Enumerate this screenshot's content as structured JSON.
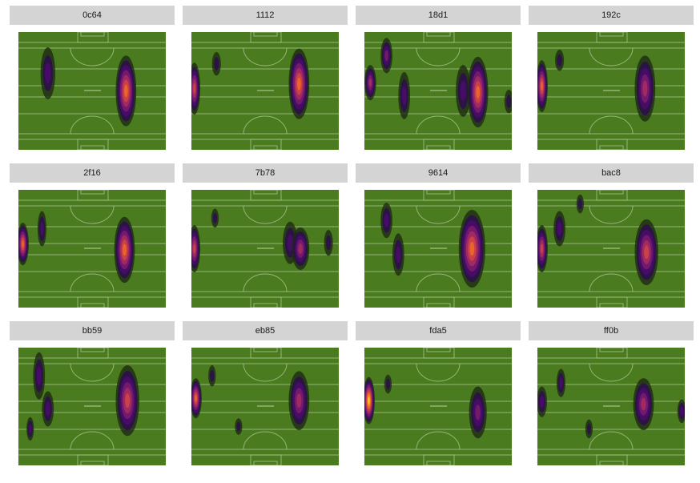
{
  "chart_data": {
    "type": "heatmap",
    "subtype": "faceted 2D density on pitch",
    "x_range": [
      0,
      100
    ],
    "y_range": [
      0,
      100
    ],
    "colors": {
      "pitch": "#4a7b1f",
      "lines": "#a9c48f",
      "strip": "#d4d4d4",
      "levels": [
        "#1d2a14",
        "#2c0f4a",
        "#4a0c6b",
        "#781c6d",
        "#a52c60",
        "#cf4446",
        "#ed6925",
        "#fb9b06",
        "#f7d13d"
      ]
    },
    "panels": [
      {
        "label": "0c64",
        "blobs": [
          {
            "x": 20,
            "y": 35,
            "rx": 5,
            "ry": 22,
            "peak": 0.3
          },
          {
            "x": 73,
            "y": 50,
            "rx": 7,
            "ry": 30,
            "peak": 0.8
          }
        ]
      },
      {
        "label": "1112",
        "blobs": [
          {
            "x": 2,
            "y": 48,
            "rx": 4,
            "ry": 22,
            "peak": 0.6
          },
          {
            "x": 17,
            "y": 27,
            "rx": 3,
            "ry": 10,
            "peak": 0.1
          },
          {
            "x": 73,
            "y": 44,
            "rx": 7,
            "ry": 30,
            "peak": 0.8
          }
        ]
      },
      {
        "label": "18d1",
        "blobs": [
          {
            "x": 4,
            "y": 43,
            "rx": 4,
            "ry": 15,
            "peak": 0.5
          },
          {
            "x": 15,
            "y": 20,
            "rx": 4,
            "ry": 15,
            "peak": 0.4
          },
          {
            "x": 27,
            "y": 54,
            "rx": 4,
            "ry": 20,
            "peak": 0.3
          },
          {
            "x": 67,
            "y": 50,
            "rx": 5,
            "ry": 22,
            "peak": 0.3
          },
          {
            "x": 77,
            "y": 51,
            "rx": 7,
            "ry": 30,
            "peak": 0.7
          },
          {
            "x": 98,
            "y": 59,
            "rx": 3,
            "ry": 10,
            "peak": 0.1
          }
        ]
      },
      {
        "label": "192c",
        "blobs": [
          {
            "x": 3,
            "y": 46,
            "rx": 4,
            "ry": 22,
            "peak": 0.7
          },
          {
            "x": 15,
            "y": 24,
            "rx": 3,
            "ry": 9,
            "peak": 0.1
          },
          {
            "x": 73,
            "y": 48,
            "rx": 7,
            "ry": 28,
            "peak": 0.5
          }
        ]
      },
      {
        "label": "2f16",
        "blobs": [
          {
            "x": 3,
            "y": 46,
            "rx": 4,
            "ry": 18,
            "peak": 0.75
          },
          {
            "x": 16,
            "y": 33,
            "rx": 3,
            "ry": 15,
            "peak": 0.2
          },
          {
            "x": 72,
            "y": 51,
            "rx": 7,
            "ry": 28,
            "peak": 0.8
          }
        ]
      },
      {
        "label": "7b78",
        "blobs": [
          {
            "x": 2,
            "y": 50,
            "rx": 4,
            "ry": 20,
            "peak": 0.6
          },
          {
            "x": 16,
            "y": 24,
            "rx": 2.5,
            "ry": 8,
            "peak": 0.1
          },
          {
            "x": 67,
            "y": 45,
            "rx": 5,
            "ry": 18,
            "peak": 0.2
          },
          {
            "x": 74,
            "y": 50,
            "rx": 6,
            "ry": 18,
            "peak": 0.5
          },
          {
            "x": 93,
            "y": 45,
            "rx": 3,
            "ry": 11,
            "peak": 0.15
          }
        ]
      },
      {
        "label": "9614",
        "blobs": [
          {
            "x": 15,
            "y": 26,
            "rx": 4,
            "ry": 15,
            "peak": 0.3
          },
          {
            "x": 23,
            "y": 55,
            "rx": 4,
            "ry": 18,
            "peak": 0.3
          },
          {
            "x": 73,
            "y": 50,
            "rx": 9,
            "ry": 33,
            "peak": 0.7
          }
        ]
      },
      {
        "label": "bac8",
        "blobs": [
          {
            "x": 3,
            "y": 50,
            "rx": 4,
            "ry": 20,
            "peak": 0.6
          },
          {
            "x": 15,
            "y": 33,
            "rx": 4,
            "ry": 15,
            "peak": 0.3
          },
          {
            "x": 29,
            "y": 12,
            "rx": 2.5,
            "ry": 8,
            "peak": 0.1
          },
          {
            "x": 74,
            "y": 53,
            "rx": 8,
            "ry": 28,
            "peak": 0.6
          }
        ]
      },
      {
        "label": "bb59",
        "blobs": [
          {
            "x": 14,
            "y": 24,
            "rx": 4,
            "ry": 20,
            "peak": 0.3
          },
          {
            "x": 20,
            "y": 52,
            "rx": 4,
            "ry": 15,
            "peak": 0.3
          },
          {
            "x": 8,
            "y": 69,
            "rx": 2.5,
            "ry": 10,
            "peak": 0.2
          },
          {
            "x": 74,
            "y": 45,
            "rx": 8,
            "ry": 30,
            "peak": 0.6
          }
        ]
      },
      {
        "label": "eb85",
        "blobs": [
          {
            "x": 3,
            "y": 43,
            "rx": 4,
            "ry": 17,
            "peak": 0.7
          },
          {
            "x": 14,
            "y": 24,
            "rx": 2.5,
            "ry": 9,
            "peak": 0.1
          },
          {
            "x": 32,
            "y": 67,
            "rx": 2.5,
            "ry": 7,
            "peak": 0.1
          },
          {
            "x": 73,
            "y": 45,
            "rx": 7,
            "ry": 25,
            "peak": 0.45
          }
        ]
      },
      {
        "label": "fda5",
        "blobs": [
          {
            "x": 3,
            "y": 45,
            "rx": 4,
            "ry": 20,
            "peak": 0.95
          },
          {
            "x": 16,
            "y": 31,
            "rx": 2.5,
            "ry": 8,
            "peak": 0.1
          },
          {
            "x": 77,
            "y": 55,
            "rx": 6,
            "ry": 22,
            "peak": 0.4
          }
        ]
      },
      {
        "label": "ff0b",
        "blobs": [
          {
            "x": 3,
            "y": 46,
            "rx": 3.5,
            "ry": 13,
            "peak": 0.3
          },
          {
            "x": 16,
            "y": 30,
            "rx": 3,
            "ry": 12,
            "peak": 0.2
          },
          {
            "x": 35,
            "y": 69,
            "rx": 2.5,
            "ry": 8,
            "peak": 0.1
          },
          {
            "x": 72,
            "y": 48,
            "rx": 7,
            "ry": 22,
            "peak": 0.55
          },
          {
            "x": 98,
            "y": 54,
            "rx": 3,
            "ry": 10,
            "peak": 0.2
          }
        ]
      }
    ]
  }
}
